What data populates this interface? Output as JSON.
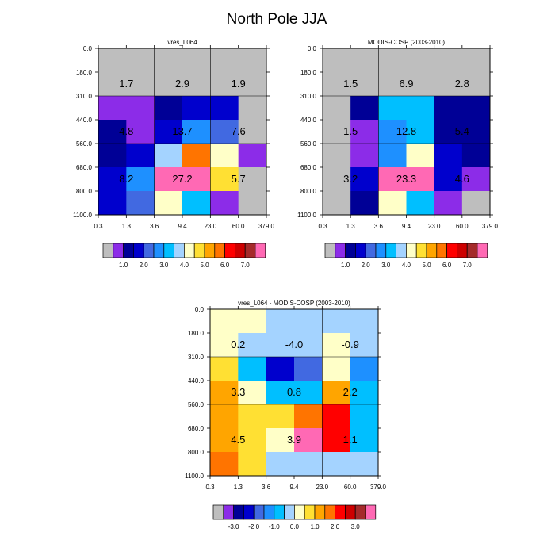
{
  "page_title": "North Pole JJA",
  "chart_data": [
    {
      "type": "heatmap",
      "title": "vres_L064",
      "xlabel": "",
      "ylabel": "",
      "x_tick_labels": [
        "0.3",
        "1.3",
        "3.6",
        "9.4",
        "23.0",
        "60.0",
        "379.0"
      ],
      "y_tick_labels": [
        "0.0",
        "180.0",
        "310.0",
        "440.0",
        "560.0",
        "680.0",
        "800.0",
        "1100.0"
      ],
      "group_values": [
        [
          "1.7",
          "2.9",
          "1.9"
        ],
        [
          "4.8",
          "13.7",
          "7.6"
        ],
        [
          "8.2",
          "27.2",
          "5.7"
        ]
      ],
      "cell_colors": [
        [
          "#bebebe",
          "#bebebe",
          "#bebebe",
          "#bebebe",
          "#bebebe",
          "#bebebe"
        ],
        [
          "#bebebe",
          "#bebebe",
          "#bebebe",
          "#bebebe",
          "#bebebe",
          "#bebebe"
        ],
        [
          "#8c2ce8",
          "#8c2ce8",
          "#000096",
          "#0000cd",
          "#0000cd",
          "#bebebe"
        ],
        [
          "#000096",
          "#8c2ce8",
          "#0000cd",
          "#1e90ff",
          "#4169e1",
          "#bebebe"
        ],
        [
          "#000096",
          "#0000cd",
          "#a4d3ff",
          "#ff7400",
          "#ffffc8",
          "#8c2ce8"
        ],
        [
          "#0000cd",
          "#1e90ff",
          "#ff69b4",
          "#ff69b4",
          "#ffe033",
          "#bebebe"
        ],
        [
          "#0000cd",
          "#4169e1",
          "#ffffc8",
          "#00bfff",
          "#8c2ce8",
          "#bebebe"
        ]
      ],
      "colorbar": {
        "colors": [
          "#bebebe",
          "#8c2ce8",
          "#000096",
          "#0000cd",
          "#4169e1",
          "#1e90ff",
          "#00bfff",
          "#a4d3ff",
          "#ffffc8",
          "#ffe033",
          "#ffa500",
          "#ff7400",
          "#ff0000",
          "#cd0000",
          "#a52a2a",
          "#ff69b4"
        ],
        "labels": [
          "1.0",
          "2.0",
          "3.0",
          "4.0",
          "5.0",
          "6.0",
          "7.0"
        ],
        "label_boundaries": [
          2,
          4,
          6,
          8,
          10,
          12,
          14
        ]
      }
    },
    {
      "type": "heatmap",
      "title": "MODIS-COSP (2003-2010)",
      "xlabel": "",
      "ylabel": "",
      "x_tick_labels": [
        "0.3",
        "1.3",
        "3.6",
        "9.4",
        "23.0",
        "60.0",
        "379.0"
      ],
      "y_tick_labels": [
        "0.0",
        "180.0",
        "310.0",
        "440.0",
        "560.0",
        "680.0",
        "800.0",
        "1100.0"
      ],
      "group_values": [
        [
          "1.5",
          "6.9",
          "2.8"
        ],
        [
          "1.5",
          "12.8",
          "5.4"
        ],
        [
          "3.2",
          "23.3",
          "4.6"
        ]
      ],
      "cell_colors": [
        [
          "#bebebe",
          "#bebebe",
          "#bebebe",
          "#bebebe",
          "#bebebe",
          "#bebebe"
        ],
        [
          "#bebebe",
          "#bebebe",
          "#bebebe",
          "#bebebe",
          "#bebebe",
          "#bebebe"
        ],
        [
          "#bebebe",
          "#000096",
          "#00bfff",
          "#00bfff",
          "#000096",
          "#000096"
        ],
        [
          "#bebebe",
          "#8c2ce8",
          "#1e90ff",
          "#00bfff",
          "#000096",
          "#000096"
        ],
        [
          "#bebebe",
          "#8c2ce8",
          "#1e90ff",
          "#ffffc8",
          "#0000cd",
          "#000096"
        ],
        [
          "#bebebe",
          "#0000cd",
          "#ff69b4",
          "#ff69b4",
          "#0000cd",
          "#8c2ce8"
        ],
        [
          "#bebebe",
          "#000096",
          "#ffffc8",
          "#00bfff",
          "#8c2ce8",
          "#bebebe"
        ]
      ],
      "colorbar": {
        "colors": [
          "#bebebe",
          "#8c2ce8",
          "#000096",
          "#0000cd",
          "#4169e1",
          "#1e90ff",
          "#00bfff",
          "#a4d3ff",
          "#ffffc8",
          "#ffe033",
          "#ffa500",
          "#ff7400",
          "#ff0000",
          "#cd0000",
          "#a52a2a",
          "#ff69b4"
        ],
        "labels": [
          "1.0",
          "2.0",
          "3.0",
          "4.0",
          "5.0",
          "6.0",
          "7.0"
        ],
        "label_boundaries": [
          2,
          4,
          6,
          8,
          10,
          12,
          14
        ]
      }
    },
    {
      "type": "heatmap",
      "title": "vres_L064 - MODIS-COSP (2003-2010)",
      "xlabel": "",
      "ylabel": "",
      "x_tick_labels": [
        "0.3",
        "1.3",
        "3.6",
        "9.4",
        "23.0",
        "60.0",
        "379.0"
      ],
      "y_tick_labels": [
        "0.0",
        "180.0",
        "310.0",
        "440.0",
        "560.0",
        "680.0",
        "800.0",
        "1100.0"
      ],
      "group_values": [
        [
          "0.2",
          "-4.0",
          "-0.9"
        ],
        [
          "3.3",
          "0.8",
          "2.2"
        ],
        [
          "4.5",
          "3.9",
          "1.1"
        ]
      ],
      "cell_colors": [
        [
          "#ffffc8",
          "#ffffc8",
          "#a4d3ff",
          "#a4d3ff",
          "#a4d3ff",
          "#a4d3ff"
        ],
        [
          "#ffffc8",
          "#a4d3ff",
          "#a4d3ff",
          "#a4d3ff",
          "#ffffc8",
          "#a4d3ff"
        ],
        [
          "#ffe033",
          "#00bfff",
          "#0000cd",
          "#4169e1",
          "#ffffc8",
          "#1e90ff"
        ],
        [
          "#ffa500",
          "#ffffc8",
          "#00bfff",
          "#00bfff",
          "#ffa500",
          "#00bfff"
        ],
        [
          "#ffa500",
          "#ffe033",
          "#ffe033",
          "#ff7400",
          "#ff0000",
          "#00bfff"
        ],
        [
          "#ffa500",
          "#ffe033",
          "#ffffc8",
          "#ff69b4",
          "#ff0000",
          "#00bfff"
        ],
        [
          "#ff7400",
          "#ffe033",
          "#a4d3ff",
          "#a4d3ff",
          "#a4d3ff",
          "#a4d3ff"
        ]
      ],
      "colorbar": {
        "colors": [
          "#bebebe",
          "#8c2ce8",
          "#000096",
          "#0000cd",
          "#4169e1",
          "#1e90ff",
          "#00bfff",
          "#a4d3ff",
          "#ffffc8",
          "#ffe033",
          "#ffa500",
          "#ff7400",
          "#ff0000",
          "#cd0000",
          "#a52a2a",
          "#ff69b4"
        ],
        "labels": [
          "-3.0",
          "-2.0",
          "-1.0",
          "0.0",
          "1.0",
          "2.0",
          "3.0"
        ],
        "label_boundaries": [
          2,
          4,
          6,
          8,
          10,
          12,
          14
        ]
      }
    }
  ]
}
